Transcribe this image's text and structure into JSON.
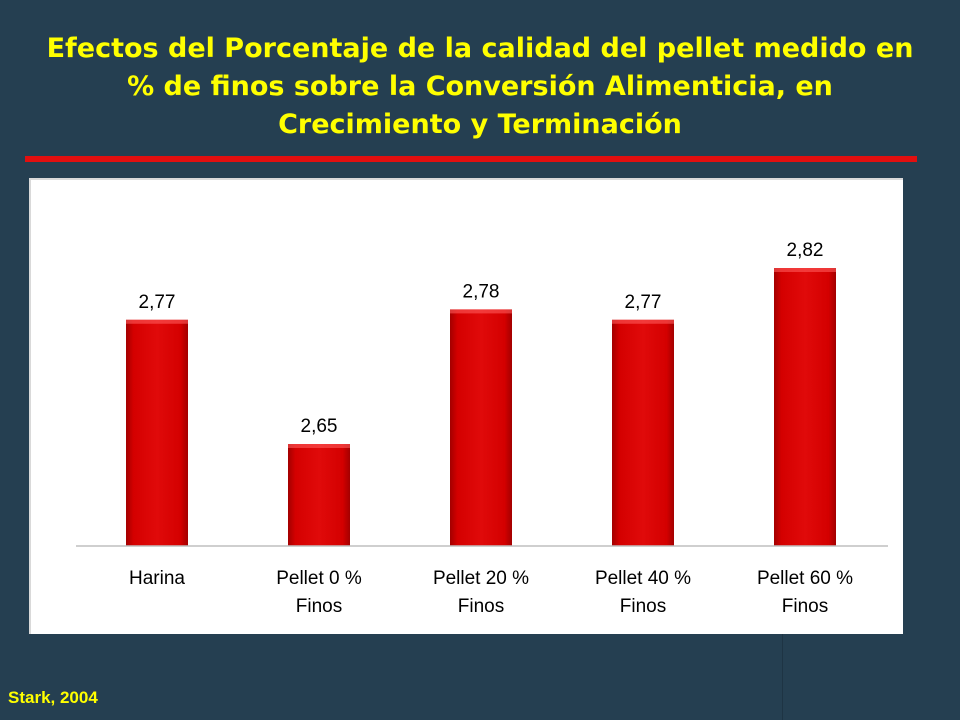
{
  "slide": {
    "title": "Efectos del Porcentaje de la calidad del pellet medido en % de finos sobre la Conversión Alimenticia, en Crecimiento y Terminación",
    "source": "Stark, 2004"
  },
  "colors": {
    "background": "#253f51",
    "title": "#ffff00",
    "rule": "#e20f0f",
    "bar": "#d40000",
    "source": "#ffff00"
  },
  "chart_data": {
    "type": "bar",
    "title": "",
    "xlabel": "",
    "ylabel": "",
    "categories": [
      [
        "Harina"
      ],
      [
        "Pellet 0 %",
        "Finos"
      ],
      [
        "Pellet 20 %",
        "Finos"
      ],
      [
        "Pellet 40 %",
        "Finos"
      ],
      [
        "Pellet 60 %",
        "Finos"
      ]
    ],
    "values": [
      2.77,
      2.65,
      2.78,
      2.77,
      2.82
    ],
    "value_labels": [
      "2,77",
      "2,65",
      "2,78",
      "2,77",
      "2,82"
    ],
    "grid": false,
    "legend": "none"
  }
}
